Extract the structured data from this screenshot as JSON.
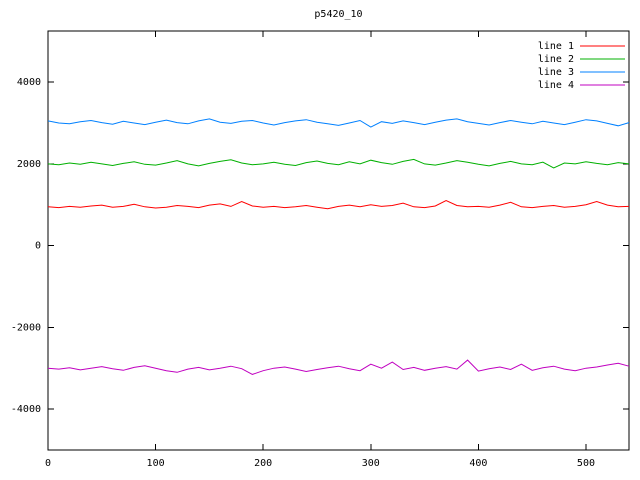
{
  "chart_data": {
    "type": "line",
    "title": "p5420_10",
    "xlabel": "",
    "ylabel": "",
    "xlim": [
      0,
      540
    ],
    "ylim": [
      -5000,
      5250
    ],
    "x_ticks": [
      0,
      100,
      200,
      300,
      400,
      500
    ],
    "y_ticks": [
      -4000,
      -2000,
      0,
      2000,
      4000
    ],
    "grid": false,
    "legend_position": "top-right-inside",
    "background_color": "#ffffff",
    "border_color": "#000000",
    "x_start": 0,
    "x_step": 10,
    "series": [
      {
        "name": "line 1",
        "color": "#ff0000",
        "values": [
          950,
          930,
          960,
          940,
          970,
          990,
          940,
          960,
          1010,
          950,
          920,
          940,
          980,
          960,
          930,
          990,
          1020,
          960,
          1080,
          970,
          940,
          960,
          930,
          950,
          980,
          940,
          900,
          960,
          990,
          950,
          1000,
          960,
          980,
          1040,
          950,
          930,
          970,
          1100,
          980,
          950,
          960,
          940,
          990,
          1060,
          950,
          930,
          960,
          980,
          940,
          960,
          1000,
          1080,
          990,
          950,
          960
        ]
      },
      {
        "name": "line 2",
        "color": "#00b000",
        "values": [
          2000,
          1980,
          2020,
          1990,
          2040,
          2000,
          1960,
          2010,
          2050,
          1990,
          1970,
          2020,
          2080,
          2000,
          1950,
          2010,
          2060,
          2100,
          2020,
          1980,
          2000,
          2040,
          1990,
          1960,
          2030,
          2070,
          2010,
          1980,
          2050,
          2000,
          2090,
          2030,
          1990,
          2060,
          2110,
          2000,
          1970,
          2020,
          2080,
          2040,
          1990,
          1950,
          2010,
          2060,
          2000,
          1980,
          2040,
          1900,
          2020,
          2000,
          2050,
          2010,
          1980,
          2030,
          2000
        ]
      },
      {
        "name": "line 3",
        "color": "#0080ff",
        "values": [
          3050,
          3000,
          2980,
          3030,
          3060,
          3010,
          2970,
          3040,
          3000,
          2960,
          3020,
          3070,
          3010,
          2980,
          3050,
          3100,
          3020,
          2990,
          3040,
          3060,
          3000,
          2950,
          3010,
          3050,
          3080,
          3020,
          2980,
          2940,
          3000,
          3060,
          2900,
          3030,
          2990,
          3050,
          3010,
          2960,
          3020,
          3070,
          3100,
          3030,
          2990,
          2950,
          3010,
          3060,
          3020,
          2980,
          3040,
          3000,
          2960,
          3020,
          3080,
          3050,
          2990,
          2930,
          3010
        ]
      },
      {
        "name": "line 4",
        "color": "#c000c0",
        "values": [
          -3000,
          -3020,
          -2990,
          -3040,
          -3000,
          -2960,
          -3010,
          -3050,
          -2980,
          -2940,
          -3000,
          -3060,
          -3100,
          -3020,
          -2980,
          -3040,
          -3000,
          -2950,
          -3010,
          -3150,
          -3060,
          -3000,
          -2970,
          -3020,
          -3080,
          -3030,
          -2990,
          -2950,
          -3010,
          -3060,
          -2900,
          -3000,
          -2850,
          -3030,
          -2980,
          -3050,
          -3000,
          -2960,
          -3020,
          -2800,
          -3070,
          -3010,
          -2970,
          -3030,
          -2900,
          -3050,
          -2990,
          -2950,
          -3020,
          -3060,
          -3000,
          -2970,
          -2920,
          -2880,
          -2950
        ]
      }
    ]
  }
}
